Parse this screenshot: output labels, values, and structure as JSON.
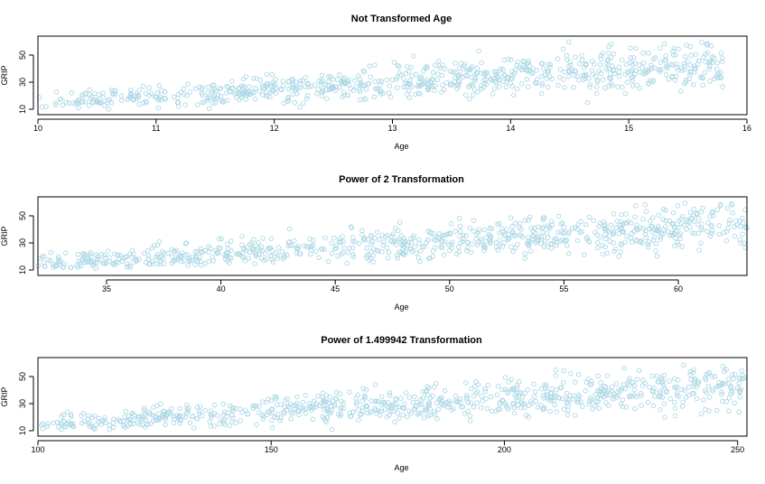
{
  "chart_data": [
    {
      "type": "scatter",
      "title": "Not Transformed Age",
      "xlabel": "Age",
      "ylabel": "GRIP",
      "xlim": [
        10,
        16
      ],
      "ylim": [
        10,
        60
      ],
      "xticks": [
        10,
        11,
        12,
        13,
        14,
        15,
        16
      ],
      "yticks": [
        10,
        30,
        50
      ],
      "point_color": "#add8e6",
      "n_points": 800,
      "seed": 11,
      "trend_x": [
        10,
        16
      ],
      "trend_y": [
        15,
        44
      ],
      "x_range": [
        10.0,
        15.8
      ]
    },
    {
      "type": "scatter",
      "title": "Power of 2 Transformation",
      "xlabel": "Age",
      "ylabel": "GRIP",
      "xlim": [
        32,
        63
      ],
      "ylim": [
        10,
        60
      ],
      "xticks": [
        35,
        40,
        45,
        50,
        55,
        60
      ],
      "yticks": [
        10,
        30,
        50
      ],
      "point_color": "#add8e6",
      "n_points": 800,
      "seed": 23,
      "trend_x": [
        32,
        63
      ],
      "trend_y": [
        15,
        44
      ],
      "x_range": [
        32.0,
        63.0
      ]
    },
    {
      "type": "scatter",
      "title": "Power of 1.499942 Transformation",
      "xlabel": "Age",
      "ylabel": "GRIP",
      "xlim": [
        100,
        252
      ],
      "ylim": [
        10,
        60
      ],
      "xticks": [
        100,
        150,
        200,
        250
      ],
      "yticks": [
        10,
        30,
        50
      ],
      "point_color": "#add8e6",
      "n_points": 800,
      "seed": 37,
      "trend_x": [
        100,
        252
      ],
      "trend_y": [
        15,
        44
      ],
      "x_range": [
        100.0,
        252.0
      ]
    }
  ]
}
